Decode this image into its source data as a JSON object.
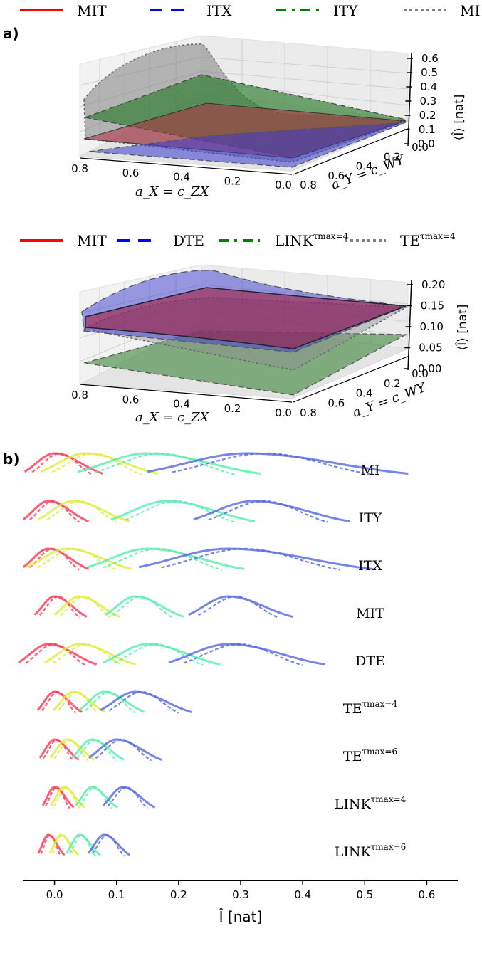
{
  "panel_a_label": "a)",
  "panel_b_label": "b)",
  "top_legend": [
    {
      "label": "MIT",
      "color": "#ff0000",
      "style": "solid"
    },
    {
      "label": "ITX",
      "color": "#0000ff",
      "style": "dashed"
    },
    {
      "label": "ITY",
      "color": "#007f00",
      "style": "dashdot"
    },
    {
      "label": "MI",
      "color": "#808080",
      "style": "dotted"
    }
  ],
  "mid_legend": [
    {
      "label": "MIT",
      "color": "#ff0000",
      "style": "solid"
    },
    {
      "label": "DTE",
      "color": "#0000ff",
      "style": "dashed"
    },
    {
      "label": "LINK",
      "sup": "τmax=4",
      "color": "#007f00",
      "style": "dashdot"
    },
    {
      "label": "TE",
      "sup": "τmax=4",
      "color": "#808080",
      "style": "dotted"
    }
  ],
  "chart_data": [
    {
      "type": "surface3d",
      "panel": "a)",
      "xlabel": "a_X = c_ZX",
      "ylabel": "a_Y = c_WY",
      "zlabel": "⟨Î⟩ [nat]",
      "x_ticks": [
        "0.8",
        "0.6",
        "0.4",
        "0.2",
        "0.0"
      ],
      "y_ticks": [
        "0.8",
        "0.6",
        "0.4",
        "0.2",
        "0.0"
      ],
      "z_ticks": [
        "0.0",
        "0.1",
        "0.2",
        "0.3",
        "0.4",
        "0.5",
        "0.6"
      ],
      "zlim": [
        0,
        0.6
      ],
      "series": [
        {
          "name": "MIT",
          "color": "#ff0000"
        },
        {
          "name": "ITX",
          "color": "#0000ff"
        },
        {
          "name": "ITY",
          "color": "#007f00"
        },
        {
          "name": "MI",
          "color": "#808080"
        }
      ]
    },
    {
      "type": "surface3d",
      "xlabel": "a_X = c_ZX",
      "ylabel": "a_Y = c_WY",
      "zlabel": "⟨Î⟩ [nat]",
      "x_ticks": [
        "0.8",
        "0.6",
        "0.4",
        "0.2",
        "0.0"
      ],
      "y_ticks": [
        "0.8",
        "0.6",
        "0.4",
        "0.2",
        "0.0"
      ],
      "z_ticks": [
        "0.00",
        "0.05",
        "0.10",
        "0.15",
        "0.20"
      ],
      "zlim": [
        0,
        0.2
      ],
      "series": [
        {
          "name": "MIT",
          "color": "#ff0000"
        },
        {
          "name": "DTE",
          "color": "#0000ff"
        },
        {
          "name": "LINK^τmax=4",
          "color": "#007f00"
        },
        {
          "name": "TE^τmax=4",
          "color": "#808080"
        }
      ]
    },
    {
      "type": "line",
      "panel": "b)",
      "xlabel": "Î [nat]",
      "x_ticks": [
        "0.0",
        "0.1",
        "0.2",
        "0.3",
        "0.4",
        "0.5",
        "0.6"
      ],
      "xlim": [
        -0.05,
        0.65
      ],
      "series_colors": [
        "#ff3355",
        "#ddee33",
        "#55eeaa",
        "#5566dd"
      ],
      "rows": [
        {
          "label": "MI",
          "sup": "",
          "peaks": [
            0.0,
            0.05,
            0.15,
            0.31
          ],
          "widths": [
            0.03,
            0.045,
            0.07,
            0.1
          ]
        },
        {
          "label": "ITY",
          "sup": "",
          "peaks": [
            -0.01,
            0.03,
            0.18,
            0.32
          ],
          "widths": [
            0.025,
            0.035,
            0.055,
            0.06
          ]
        },
        {
          "label": "ITX",
          "sup": "",
          "peaks": [
            -0.01,
            0.02,
            0.15,
            0.28
          ],
          "widths": [
            0.025,
            0.04,
            0.06,
            0.09
          ]
        },
        {
          "label": "MIT",
          "sup": "",
          "peaks": [
            0.0,
            0.04,
            0.13,
            0.28
          ],
          "widths": [
            0.02,
            0.025,
            0.03,
            0.04
          ]
        },
        {
          "label": "DTE",
          "sup": "",
          "peaks": [
            -0.01,
            0.04,
            0.15,
            0.28
          ],
          "widths": [
            0.03,
            0.035,
            0.045,
            0.06
          ]
        },
        {
          "label": "TE",
          "sup": "τmax=4",
          "peaks": [
            0.0,
            0.03,
            0.08,
            0.13
          ],
          "widths": [
            0.017,
            0.02,
            0.025,
            0.035
          ]
        },
        {
          "label": "TE",
          "sup": "τmax=6",
          "peaks": [
            0.0,
            0.02,
            0.06,
            0.1
          ],
          "widths": [
            0.015,
            0.017,
            0.02,
            0.028
          ]
        },
        {
          "label": "LINK",
          "sup": "τmax=4",
          "peaks": [
            0.0,
            0.015,
            0.06,
            0.11
          ],
          "widths": [
            0.012,
            0.013,
            0.016,
            0.02
          ]
        },
        {
          "label": "LINK",
          "sup": "τmax=6",
          "peaks": [
            -0.01,
            0.01,
            0.04,
            0.08
          ],
          "widths": [
            0.01,
            0.011,
            0.013,
            0.016
          ]
        }
      ]
    }
  ]
}
